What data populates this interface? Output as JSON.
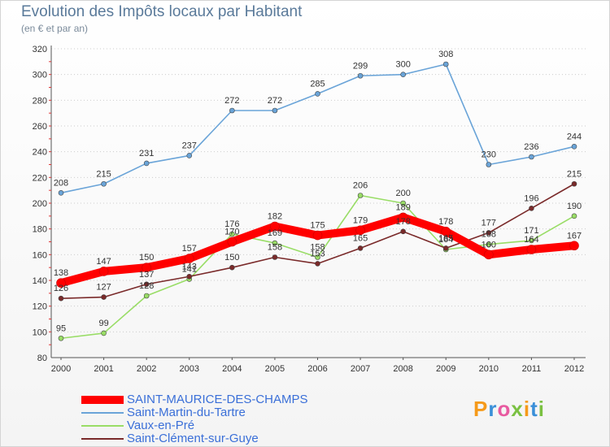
{
  "header": {
    "title": "Evolution des Impôts locaux par Habitant",
    "subtitle": "(en € et par an)"
  },
  "logo": {
    "text": "Proxiti",
    "letter_colors": [
      "#f59a1a",
      "#3a8fd8",
      "#e85aa0",
      "#7ac142",
      "#f59a1a",
      "#3a8fd8",
      "#7ac142"
    ]
  },
  "chart_data": {
    "type": "line",
    "title": "Evolution des Impôts locaux par Habitant",
    "subtitle": "(en € et par an)",
    "xlabel": "",
    "ylabel": "",
    "x": [
      "2000",
      "2001",
      "2002",
      "2003",
      "2004",
      "2005",
      "2006",
      "2007",
      "2008",
      "2009",
      "2010",
      "2011",
      "2012"
    ],
    "ylim": [
      80,
      320
    ],
    "yticks": [
      80,
      100,
      120,
      140,
      160,
      180,
      200,
      220,
      240,
      260,
      280,
      300,
      320
    ],
    "grid": "horizontal dotted",
    "legend_position": "bottom-left",
    "series": [
      {
        "name": "Saint-Martin-du-Tartre",
        "color": "#6aa4d8",
        "values": [
          208,
          215,
          231,
          237,
          272,
          272,
          285,
          299,
          300,
          308,
          230,
          236,
          244
        ]
      },
      {
        "name": "Vaux-en-Pré",
        "color": "#99dd66",
        "values": [
          95,
          99,
          128,
          141,
          176,
          169,
          158,
          206,
          200,
          164,
          168,
          171,
          190
        ]
      },
      {
        "name": "Saint-Clément-sur-Guye",
        "color": "#7a2a2a",
        "values": [
          126,
          127,
          137,
          143,
          150,
          158,
          153,
          165,
          178,
          165,
          177,
          196,
          215
        ]
      },
      {
        "name": "SAINT-MAURICE-DES-CHAMPS",
        "color": "#ff0000",
        "values": [
          138,
          147,
          150,
          157,
          170,
          182,
          175,
          179,
          189,
          178,
          160,
          164,
          167
        ]
      }
    ]
  },
  "legend": {
    "items": [
      {
        "label": "SAINT-MAURICE-DES-CHAMPS",
        "color": "#ff0000"
      },
      {
        "label": "Saint-Martin-du-Tartre",
        "color": "#6aa4d8"
      },
      {
        "label": "Vaux-en-Pré",
        "color": "#99dd66"
      },
      {
        "label": "Saint-Clément-sur-Guye",
        "color": "#7a2a2a"
      }
    ]
  }
}
